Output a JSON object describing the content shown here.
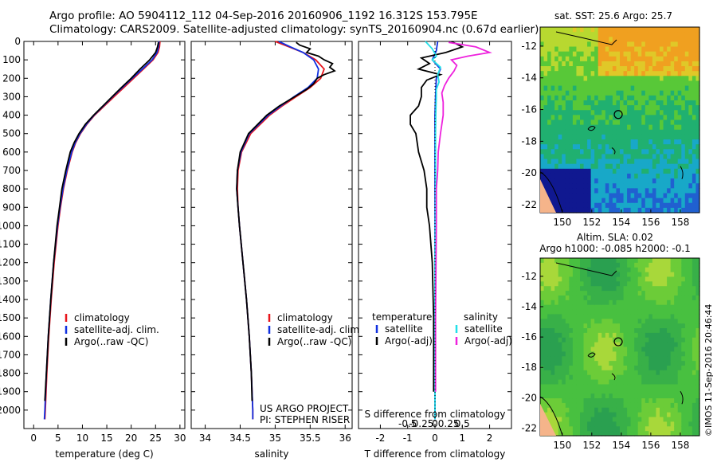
{
  "header": {
    "line1": "Argo profile: AO 5904112_112 04-Sep-2016 20160906_1192 16.312S 153.795E",
    "line2": "Climatology: CARS2009. Satellite-adjusted climatology: synTS_20160904.nc (0.67d earlier)"
  },
  "side_stamp": "©IMOS 11-Sep-2016 20:46:44",
  "colors": {
    "climatology": "#e8141b",
    "satellite": "#1030e0",
    "argo": "#000000",
    "sat_s": "#22e0e8",
    "argo_s": "#ee22dd"
  },
  "chart_data": [
    {
      "type": "line",
      "id": "temperature",
      "xlabel": "temperature (deg C)",
      "ylabel": "",
      "xlim": [
        -2,
        31
      ],
      "ylim": [
        2100,
        0
      ],
      "x_ticks": [
        0,
        5,
        10,
        15,
        20,
        25,
        30
      ],
      "y_ticks": [
        0,
        100,
        200,
        300,
        400,
        500,
        600,
        700,
        800,
        900,
        1000,
        1100,
        1200,
        1300,
        1400,
        1500,
        1600,
        1700,
        1800,
        1900,
        2000
      ],
      "legend": [
        "climatology",
        "satellite-adj. clim.",
        "Argo(..raw -QC)"
      ],
      "series": [
        {
          "name": "climatology",
          "color": "#e8141b",
          "depth": [
            0,
            30,
            60,
            100,
            150,
            200,
            250,
            300,
            350,
            400,
            450,
            500,
            550,
            600,
            700,
            800,
            900,
            1000,
            1200,
            1400,
            1600,
            1800,
            2000,
            2050
          ],
          "values": [
            25.9,
            25.8,
            25.5,
            24.5,
            22.5,
            20.5,
            18.5,
            16.5,
            14.5,
            12.5,
            10.9,
            9.6,
            8.6,
            7.9,
            6.9,
            6.1,
            5.5,
            5.0,
            4.2,
            3.6,
            3.1,
            2.7,
            2.4,
            2.3
          ]
        },
        {
          "name": "satellite-adj. clim.",
          "color": "#1030e0",
          "depth": [
            0,
            30,
            60,
            100,
            150,
            200,
            250,
            300,
            350,
            400,
            450,
            500,
            550,
            600,
            700,
            800,
            900,
            1000,
            1200,
            1400,
            1600,
            1800,
            2000,
            2050
          ],
          "values": [
            25.7,
            25.6,
            25.3,
            24.3,
            22.3,
            20.2,
            18.2,
            16.2,
            14.3,
            12.4,
            10.8,
            9.5,
            8.5,
            7.8,
            6.8,
            6.0,
            5.4,
            4.9,
            4.1,
            3.5,
            3.0,
            2.6,
            2.3,
            2.2
          ]
        },
        {
          "name": "Argo(..raw -QC)",
          "color": "#000000",
          "depth": [
            5,
            30,
            60,
            100,
            150,
            200,
            250,
            300,
            350,
            400,
            450,
            500,
            550,
            600,
            700,
            800,
            900,
            1000,
            1200,
            1400,
            1600,
            1800,
            1950
          ],
          "values": [
            25.6,
            25.4,
            25.0,
            23.8,
            21.8,
            20.0,
            18.0,
            16.1,
            14.2,
            12.3,
            10.6,
            9.3,
            8.3,
            7.5,
            6.6,
            5.8,
            5.3,
            4.8,
            4.1,
            3.5,
            3.0,
            2.6,
            2.3
          ]
        }
      ]
    },
    {
      "type": "line",
      "id": "salinity",
      "xlabel": "salinity",
      "ylabel": "",
      "xlim": [
        33.8,
        36.1
      ],
      "ylim": [
        2100,
        0
      ],
      "x_ticks": [
        34,
        34.5,
        35,
        35.5,
        36
      ],
      "legend": [
        "climatology",
        "satellite-adj. clim.",
        "Argo(..raw -QC)"
      ],
      "annotation": [
        "US ARGO PROJECT",
        "PI: STEPHEN RISER"
      ],
      "series": [
        {
          "name": "climatology",
          "color": "#e8141b",
          "depth": [
            0,
            30,
            60,
            100,
            150,
            200,
            250,
            300,
            350,
            400,
            500,
            600,
            700,
            800,
            900,
            1000,
            1200,
            1400,
            1600,
            1800,
            2000,
            2050
          ],
          "values": [
            35.0,
            35.2,
            35.4,
            35.58,
            35.7,
            35.65,
            35.5,
            35.3,
            35.1,
            34.92,
            34.65,
            34.52,
            34.47,
            34.46,
            34.47,
            34.49,
            34.54,
            34.59,
            34.63,
            34.66,
            34.68,
            34.68
          ]
        },
        {
          "name": "satellite-adj. clim.",
          "color": "#1030e0",
          "depth": [
            0,
            30,
            60,
            100,
            150,
            200,
            250,
            300,
            350,
            400,
            500,
            600,
            700,
            800,
            900,
            1000,
            1200,
            1400,
            1600,
            1800,
            2000,
            2050
          ],
          "values": [
            35.05,
            35.22,
            35.4,
            35.55,
            35.62,
            35.6,
            35.47,
            35.27,
            35.08,
            34.9,
            34.63,
            34.51,
            34.46,
            34.45,
            34.47,
            34.49,
            34.54,
            34.59,
            34.63,
            34.66,
            34.68,
            34.68
          ]
        },
        {
          "name": "Argo(..raw -QC)",
          "color": "#000000",
          "depth": [
            5,
            20,
            40,
            60,
            80,
            100,
            120,
            140,
            160,
            180,
            200,
            230,
            260,
            300,
            350,
            400,
            500,
            600,
            700,
            800,
            900,
            1000,
            1200,
            1400,
            1600,
            1800,
            1950
          ],
          "values": [
            35.3,
            35.35,
            35.5,
            35.45,
            35.62,
            35.7,
            35.82,
            35.78,
            35.85,
            35.7,
            35.6,
            35.55,
            35.45,
            35.28,
            35.06,
            34.88,
            34.62,
            34.5,
            34.46,
            34.45,
            34.47,
            34.49,
            34.54,
            34.59,
            34.63,
            34.66,
            34.67
          ]
        }
      ]
    },
    {
      "type": "line",
      "id": "difference",
      "xlabel": "T difference from climatology",
      "xlabel2": "S difference from climatology",
      "xlim": [
        -2.8,
        2.8
      ],
      "ylim": [
        2100,
        0
      ],
      "x_ticks": [
        -2,
        -1,
        0,
        1,
        2
      ],
      "top_ticks": [
        "-0.5",
        "-0.25",
        "0",
        "0.25",
        "0.5"
      ],
      "legend_left_title": "temperature",
      "legend_right_title": "salinity",
      "legend_left": [
        "satellite",
        "Argo(-adj)"
      ],
      "legend_right": [
        "satellite",
        "Argo(-adj)"
      ],
      "series": [
        {
          "name": "T satellite",
          "color": "#1030e0",
          "depth": [
            0,
            50,
            100,
            150,
            200,
            300,
            400,
            600,
            800,
            1000,
            1500,
            2000,
            2050
          ],
          "values": [
            0.1,
            0.05,
            -0.1,
            0.2,
            0.05,
            0.02,
            0.0,
            0.0,
            0.0,
            0.0,
            0.0,
            0.0,
            0.0
          ]
        },
        {
          "name": "T Argo(-adj)",
          "color": "#000000",
          "depth": [
            0,
            30,
            60,
            90,
            120,
            150,
            180,
            210,
            250,
            300,
            350,
            400,
            450,
            500,
            600,
            700,
            800,
            900,
            1000,
            1200,
            1500,
            1900
          ],
          "values": [
            0.6,
            1.0,
            0.4,
            -0.5,
            -0.2,
            -0.6,
            0.2,
            -0.3,
            -0.5,
            -0.5,
            -0.6,
            -0.9,
            -0.9,
            -0.7,
            -0.6,
            -0.4,
            -0.3,
            -0.3,
            -0.2,
            -0.1,
            -0.05,
            -0.05
          ]
        },
        {
          "name": "S satellite",
          "color": "#22e0e8",
          "depth": [
            0,
            40,
            80,
            100,
            140,
            180,
            220,
            260,
            300,
            400,
            500,
            800,
            1200,
            1600,
            2000,
            2050
          ],
          "values": [
            -0.35,
            -0.1,
            0.05,
            -0.1,
            0.2,
            0.1,
            0.15,
            0.05,
            0.05,
            0.03,
            0.02,
            0.02,
            0.0,
            0.0,
            0.0,
            0.0
          ]
        },
        {
          "name": "S Argo(-adj)",
          "color": "#ee22dd",
          "depth": [
            5,
            30,
            60,
            80,
            100,
            130,
            160,
            200,
            240,
            280,
            330,
            400,
            450,
            500,
            600,
            700,
            800,
            1000,
            1500,
            1900
          ],
          "values": [
            0.5,
            1.5,
            2.0,
            1.2,
            0.6,
            0.8,
            0.7,
            0.5,
            0.35,
            0.25,
            0.3,
            0.3,
            0.25,
            0.2,
            0.12,
            0.1,
            0.05,
            0.05,
            0.02,
            0.02
          ]
        }
      ]
    },
    {
      "type": "heatmap",
      "id": "sst_map",
      "title": "sat. SST: 25.6  Argo: 25.7",
      "x_ticks": [
        150,
        152,
        154,
        156,
        158
      ],
      "y_ticks": [
        -12,
        -14,
        -16,
        -18,
        -20,
        -22
      ],
      "xlim": [
        148.5,
        159.3
      ],
      "ylim": [
        -22.5,
        -10.8
      ],
      "marker": {
        "lon": 153.795,
        "lat": -16.312
      }
    },
    {
      "type": "heatmap",
      "id": "sla_map",
      "title": "Altim. SLA: 0.02",
      "subtitle": "Argo h1000: -0.085  h2000: -0.1",
      "x_ticks": [
        150,
        152,
        154,
        156,
        158
      ],
      "y_ticks": [
        -12,
        -14,
        -16,
        -18,
        -20,
        -22
      ],
      "xlim": [
        148.5,
        159.3
      ],
      "ylim": [
        -22.5,
        -10.8
      ],
      "marker": {
        "lon": 153.795,
        "lat": -16.312
      }
    }
  ]
}
